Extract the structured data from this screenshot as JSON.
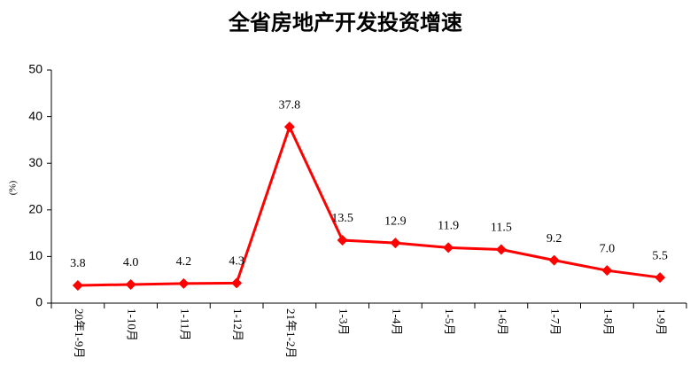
{
  "chart_data": {
    "type": "line",
    "title": "全省房地产开发投资增速",
    "y_label": "(%)",
    "categories": [
      "20年1-9月",
      "1-10月",
      "1-11月",
      "1-12月",
      "21年1-2月",
      "1-3月",
      "1-4月",
      "1-5月",
      "1-6月",
      "1-7月",
      "1-8月",
      "1-9月"
    ],
    "series": [
      {
        "name": "全省房地产开发投资增速",
        "color": "#ff0000",
        "values": [
          3.8,
          4.0,
          4.2,
          4.3,
          37.8,
          13.5,
          12.9,
          11.9,
          11.5,
          9.2,
          7.0,
          5.5
        ],
        "value_labels": [
          "3.8",
          "4.0",
          "4.2",
          "4.3",
          "37.8",
          "13.5",
          "12.9",
          "11.9",
          "11.5",
          "9.2",
          "7.0",
          "5.5"
        ]
      }
    ],
    "ylim": [
      0,
      50
    ],
    "yticks": [
      0,
      10,
      20,
      30,
      40,
      50
    ],
    "grid": false
  }
}
